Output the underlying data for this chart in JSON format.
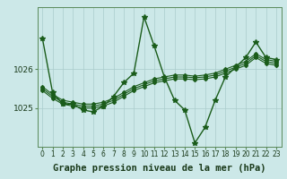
{
  "bg_color": "#cce8e8",
  "grid_color": "#aacccc",
  "line_color": "#1a5c1a",
  "title": "Graphe pression niveau de la mer (hPa)",
  "ylim": [
    1024.0,
    1027.6
  ],
  "yticks": [
    1025,
    1026
  ],
  "xticks": [
    0,
    1,
    2,
    3,
    4,
    5,
    6,
    7,
    8,
    9,
    10,
    11,
    12,
    13,
    14,
    15,
    16,
    17,
    18,
    19,
    20,
    21,
    22,
    23
  ],
  "series_main": [
    1026.8,
    1025.4,
    1025.1,
    1025.1,
    1024.95,
    1024.9,
    1025.05,
    1025.3,
    1025.65,
    1025.9,
    1027.35,
    1026.6,
    1025.8,
    1025.2,
    1024.95,
    1024.1,
    1024.5,
    1025.2,
    1025.8,
    1026.05,
    1026.3,
    1026.7,
    1026.3,
    1026.25
  ],
  "series_smooth": [
    [
      1025.55,
      1025.35,
      1025.2,
      1025.15,
      1025.1,
      1025.1,
      1025.15,
      1025.25,
      1025.4,
      1025.55,
      1025.65,
      1025.75,
      1025.8,
      1025.85,
      1025.85,
      1025.82,
      1025.85,
      1025.9,
      1026.0,
      1026.1,
      1026.2,
      1026.4,
      1026.25,
      1026.2
    ],
    [
      1025.5,
      1025.3,
      1025.15,
      1025.1,
      1025.05,
      1025.05,
      1025.1,
      1025.2,
      1025.35,
      1025.5,
      1025.6,
      1025.7,
      1025.75,
      1025.8,
      1025.8,
      1025.78,
      1025.8,
      1025.85,
      1025.95,
      1026.05,
      1026.15,
      1026.35,
      1026.2,
      1026.15
    ],
    [
      1025.45,
      1025.25,
      1025.1,
      1025.05,
      1025.0,
      1025.0,
      1025.05,
      1025.15,
      1025.3,
      1025.45,
      1025.55,
      1025.65,
      1025.7,
      1025.75,
      1025.75,
      1025.73,
      1025.75,
      1025.8,
      1025.9,
      1026.0,
      1026.1,
      1026.3,
      1026.15,
      1026.1
    ]
  ],
  "marker_size_main": 3.0,
  "marker_size_smooth": 2.0,
  "linewidth_main": 1.0,
  "linewidth_smooth": 0.8,
  "title_fontsize": 7.5,
  "tick_fontsize": 5.5
}
